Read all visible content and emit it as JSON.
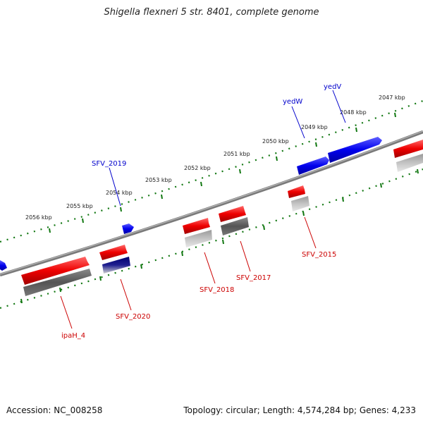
{
  "title": "Shigella flexneri 5 str. 8401, complete genome",
  "footer": {
    "accession": "Accession: NC_008258",
    "summary": "Topology: circular; Length: 4,574,284 bp; Genes: 4,233"
  },
  "colors": {
    "forward_gene": "#0000ee",
    "reverse_gene": "#ee0000",
    "forward_label": "#0000cc",
    "reverse_label": "#cc0000",
    "backbone": "#808080",
    "tick_track": "#117711"
  },
  "kbp_labels": [
    "2056 kbp",
    "2055 kbp",
    "2054 kbp",
    "2053 kbp",
    "2052 kbp",
    "2051 kbp",
    "2050 kbp",
    "2049 kbp",
    "2048 kbp",
    "2047 kbp"
  ],
  "forward_gene_labels": [
    "SFV_2019",
    "yedW",
    "yedV"
  ],
  "reverse_gene_labels": [
    "ipaH_4",
    "SFV_2020",
    "SFV_2018",
    "SFV_2017",
    "SFV_2015"
  ]
}
